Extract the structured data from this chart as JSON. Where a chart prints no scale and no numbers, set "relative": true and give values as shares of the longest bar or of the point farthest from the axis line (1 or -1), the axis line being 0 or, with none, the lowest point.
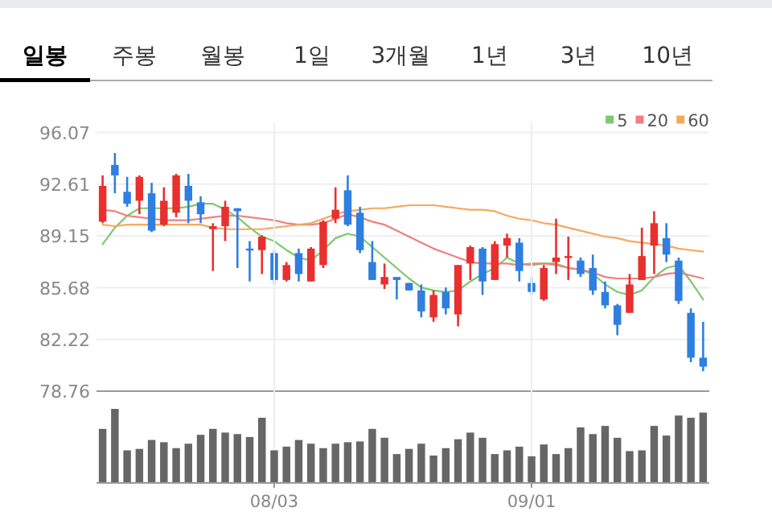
{
  "chart_data": [
    {
      "type": "other",
      "annotations": [
        "일봉",
        "주봉",
        "월봉",
        "1일",
        "3개월",
        "1년",
        "3년",
        "10년"
      ]
    },
    {
      "type": "candlestick",
      "categories": [
        null,
        null,
        null,
        null,
        null,
        null,
        null,
        null,
        null,
        null,
        null,
        null,
        null,
        null,
        null,
        null,
        null,
        null,
        null,
        null,
        null,
        null,
        null,
        null,
        null,
        null,
        null,
        null,
        null,
        null,
        null,
        null,
        null,
        null,
        null,
        null,
        null,
        null,
        null,
        null,
        null,
        null,
        null,
        null,
        null,
        null,
        null,
        null,
        null,
        null
      ],
      "ohlc": [
        [
          90.1,
          93.2,
          90.0,
          92.5
        ],
        [
          93.9,
          94.7,
          92.0,
          93.2
        ],
        [
          92.1,
          93.1,
          91.1,
          91.3
        ],
        [
          91.5,
          93.2,
          90.6,
          93.1
        ],
        [
          92.0,
          92.7,
          89.4,
          89.5
        ],
        [
          89.9,
          92.4,
          89.8,
          91.5
        ],
        [
          90.7,
          93.3,
          90.4,
          93.2
        ],
        [
          92.5,
          93.3,
          90.0,
          91.5
        ],
        [
          91.4,
          91.8,
          90.0,
          90.6
        ],
        [
          89.6,
          90.0,
          86.8,
          89.8
        ],
        [
          89.8,
          91.5,
          88.8,
          91.1
        ],
        [
          91.0,
          91.0,
          87.0,
          90.8
        ],
        [
          88.3,
          88.8,
          86.1,
          88.2
        ],
        [
          88.2,
          89.2,
          86.6,
          89.1
        ],
        [
          88.0,
          88.2,
          85.9,
          86.2
        ],
        [
          86.2,
          87.4,
          86.1,
          87.2
        ],
        [
          88.0,
          88.3,
          86.1,
          86.6
        ],
        [
          86.1,
          88.4,
          86.1,
          88.3
        ],
        [
          87.2,
          90.2,
          87.0,
          90.1
        ],
        [
          90.3,
          92.4,
          90.0,
          90.9
        ],
        [
          92.2,
          93.2,
          89.8,
          89.9
        ],
        [
          90.7,
          91.1,
          88.0,
          88.2
        ],
        [
          87.4,
          88.8,
          86.2,
          86.2
        ],
        [
          85.9,
          87.3,
          85.6,
          86.4
        ],
        [
          86.4,
          86.4,
          84.9,
          86.2
        ],
        [
          86.0,
          86.0,
          85.5,
          85.5
        ],
        [
          85.5,
          85.9,
          83.7,
          84.1
        ],
        [
          83.7,
          85.5,
          83.4,
          85.2
        ],
        [
          85.4,
          85.7,
          83.9,
          84.3
        ],
        [
          83.9,
          87.2,
          83.1,
          87.2
        ],
        [
          87.3,
          88.5,
          86.2,
          88.4
        ],
        [
          88.3,
          88.4,
          85.2,
          86.1
        ],
        [
          86.2,
          88.8,
          86.2,
          88.6
        ],
        [
          88.5,
          89.3,
          87.7,
          89.0
        ],
        [
          88.7,
          89.0,
          86.1,
          86.8
        ],
        [
          86.0,
          86.4,
          85.2,
          85.4
        ],
        [
          84.9,
          87.2,
          84.8,
          87.0
        ],
        [
          87.4,
          90.3,
          86.6,
          87.7
        ],
        [
          87.7,
          89.1,
          86.2,
          87.8
        ],
        [
          87.5,
          87.7,
          86.4,
          86.6
        ],
        [
          87.0,
          87.9,
          85.2,
          85.5
        ],
        [
          85.4,
          86.1,
          84.3,
          84.5
        ],
        [
          84.5,
          84.6,
          82.5,
          83.2
        ],
        [
          84.0,
          86.6,
          84.0,
          85.9
        ],
        [
          86.2,
          89.7,
          86.2,
          87.8
        ],
        [
          88.5,
          90.8,
          86.6,
          90.0
        ],
        [
          89.0,
          90.0,
          87.4,
          87.9
        ],
        [
          87.5,
          87.7,
          84.6,
          84.8
        ],
        [
          84.0,
          84.3,
          80.7,
          81.0
        ],
        [
          81.0,
          83.4,
          80.1,
          80.4
        ]
      ],
      "colors": [
        "#e8302e",
        "#2e7fe0",
        "#2e7fe0",
        "#e8302e",
        "#2e7fe0",
        "#e8302e",
        "#e8302e",
        "#2e7fe0",
        "#2e7fe0",
        "#e8302e",
        "#e8302e",
        "#2e7fe0",
        "#2e7fe0",
        "#e8302e",
        "#2e7fe0",
        "#e8302e",
        "#2e7fe0",
        "#e8302e",
        "#e8302e",
        "#e8302e",
        "#2e7fe0",
        "#2e7fe0",
        "#2e7fe0",
        "#e8302e",
        "#2e7fe0",
        "#2e7fe0",
        "#2e7fe0",
        "#e8302e",
        "#2e7fe0",
        "#e8302e",
        "#e8302e",
        "#2e7fe0",
        "#e8302e",
        "#e8302e",
        "#2e7fe0",
        "#2e7fe0",
        "#e8302e",
        "#e8302e",
        "#e8302e",
        "#2e7fe0",
        "#2e7fe0",
        "#2e7fe0",
        "#2e7fe0",
        "#e8302e",
        "#e8302e",
        "#e8302e",
        "#2e7fe0",
        "#2e7fe0",
        "#2e7fe0",
        "#2e7fe0"
      ],
      "series": [
        {
          "name": "5",
          "type": "line",
          "color": "#7cc96c",
          "values": [
            88.6,
            89.7,
            90.5,
            91.0,
            91.0,
            91.0,
            91.0,
            91.1,
            91.3,
            91.3,
            90.9,
            90.4,
            89.7,
            89.1,
            88.8,
            88.2,
            87.7,
            87.5,
            88.2,
            89.0,
            89.3,
            89.1,
            88.4,
            87.7,
            87.0,
            86.3,
            85.7,
            85.5,
            85.4,
            85.5,
            86.1,
            86.6,
            87.0,
            87.7,
            87.3,
            87.2,
            87.3,
            87.3,
            87.0,
            86.9,
            86.6,
            85.9,
            85.4,
            85.2,
            85.5,
            86.4,
            87.0,
            87.2,
            86.1,
            84.9
          ]
        },
        {
          "name": "20",
          "type": "line",
          "color": "#f07f7f",
          "values": [
            90.9,
            90.8,
            90.5,
            90.4,
            90.3,
            90.2,
            90.2,
            90.2,
            90.3,
            90.4,
            90.5,
            90.5,
            90.4,
            90.3,
            90.2,
            90.0,
            89.9,
            89.9,
            90.0,
            90.3,
            90.6,
            90.4,
            90.1,
            89.9,
            89.5,
            89.1,
            88.7,
            88.3,
            88.0,
            87.7,
            87.4,
            87.3,
            87.3,
            87.3,
            87.2,
            87.3,
            87.3,
            87.2,
            87.0,
            86.9,
            86.7,
            86.4,
            86.3,
            86.3,
            86.3,
            86.4,
            86.6,
            86.7,
            86.5,
            86.3
          ]
        },
        {
          "name": "60",
          "type": "line",
          "color": "#f6a85e",
          "values": [
            89.9,
            89.8,
            89.9,
            89.9,
            89.9,
            89.9,
            89.9,
            89.9,
            89.9,
            89.7,
            89.6,
            89.6,
            89.6,
            89.6,
            89.7,
            89.8,
            89.9,
            90.0,
            90.3,
            90.6,
            90.8,
            90.9,
            91.0,
            91.0,
            91.1,
            91.2,
            91.2,
            91.2,
            91.1,
            91.0,
            90.9,
            90.9,
            90.8,
            90.5,
            90.3,
            90.2,
            90.0,
            89.9,
            89.7,
            89.5,
            89.3,
            89.1,
            89.0,
            88.8,
            88.7,
            88.6,
            88.5,
            88.3,
            88.2,
            88.1
          ]
        }
      ],
      "ylim": [
        78.76,
        96.07
      ],
      "yticks": [
        78.76,
        82.22,
        85.68,
        89.15,
        92.61,
        96.07
      ],
      "grid": "y",
      "legend": "top right",
      "tick_labels": "y"
    },
    {
      "type": "bar",
      "relative": true,
      "color": "#666666",
      "categories": [
        null,
        null,
        null,
        null,
        null,
        null,
        null,
        null,
        null,
        null,
        null,
        null,
        null,
        null,
        "08/03",
        null,
        null,
        null,
        null,
        null,
        null,
        null,
        null,
        null,
        null,
        null,
        null,
        null,
        null,
        null,
        null,
        null,
        null,
        null,
        null,
        "09/01",
        null,
        null,
        null,
        null,
        null,
        null,
        null,
        null,
        null,
        null,
        null,
        null,
        null,
        null
      ],
      "values": [
        0.73,
        1,
        0.44,
        0.46,
        0.58,
        0.55,
        0.47,
        0.53,
        0.65,
        0.73,
        0.68,
        0.66,
        0.62,
        0.88,
        0.44,
        0.49,
        0.58,
        0.53,
        0.47,
        0.53,
        0.55,
        0.56,
        0.73,
        0.61,
        0.39,
        0.46,
        0.53,
        0.37,
        0.47,
        0.59,
        0.68,
        0.61,
        0.39,
        0.44,
        0.49,
        0.36,
        0.52,
        0.39,
        0.47,
        0.75,
        0.66,
        0.77,
        0.61,
        0.43,
        0.44,
        0.77,
        0.64,
        0.91,
        0.88,
        0.95
      ],
      "grid": "x",
      "tick_labels": "x"
    }
  ]
}
